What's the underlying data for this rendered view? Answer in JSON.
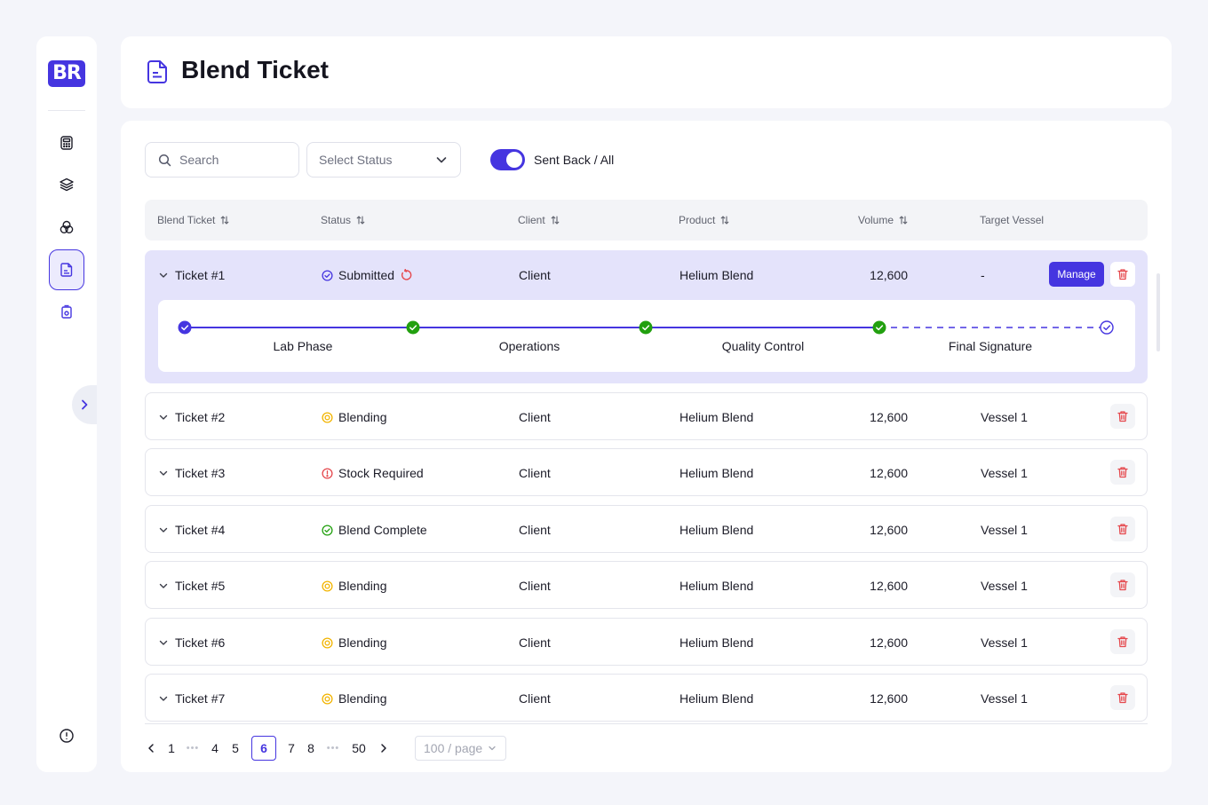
{
  "sidebar": {
    "logo": "BR",
    "items": [
      {
        "icon": "calculator-icon",
        "active": false
      },
      {
        "icon": "layers-icon",
        "active": false
      },
      {
        "icon": "blend-circles-icon",
        "active": false
      },
      {
        "icon": "document-icon",
        "active": true
      },
      {
        "icon": "cylinder-icon",
        "active": false
      }
    ],
    "footer_icon": "info-icon",
    "expand_icon": "chevron-right-icon"
  },
  "header": {
    "title": "Blend Ticket",
    "icon": "document-icon"
  },
  "toolbar": {
    "search_placeholder": "Search",
    "status_placeholder": "Select Status",
    "toggle_label": "Sent Back / All",
    "toggle_on": true
  },
  "table": {
    "columns": {
      "ticket": "Blend Ticket",
      "status": "Status",
      "client": "Client",
      "product": "Product",
      "volume": "Volume",
      "vessel": "Target Vessel"
    },
    "rows": [
      {
        "ticket": "Ticket #1",
        "status": "Submitted",
        "status_icon": "check-circle-icon",
        "client": "Client",
        "product": "Helium Blend",
        "volume": "12,600",
        "vessel": "-",
        "manage_label": "Manage"
      },
      {
        "ticket": "Ticket #2",
        "status": "Blending",
        "status_icon": "coin-icon",
        "client": "Client",
        "product": "Helium Blend",
        "volume": "12,600",
        "vessel": "Vessel 1"
      },
      {
        "ticket": "Ticket #3",
        "status": "Stock Required",
        "status_icon": "alert-icon",
        "client": "Client",
        "product": "Helium Blend",
        "volume": "12,600",
        "vessel": "Vessel 1"
      },
      {
        "ticket": "Ticket #4",
        "status": "Blend Complete",
        "status_icon": "check-circle-icon",
        "client": "Client",
        "product": "Helium Blend",
        "volume": "12,600",
        "vessel": "Vessel 1"
      },
      {
        "ticket": "Ticket #5",
        "status": "Blending",
        "status_icon": "coin-icon",
        "client": "Client",
        "product": "Helium Blend",
        "volume": "12,600",
        "vessel": "Vessel 1"
      },
      {
        "ticket": "Ticket #6",
        "status": "Blending",
        "status_icon": "coin-icon",
        "client": "Client",
        "product": "Helium Blend",
        "volume": "12,600",
        "vessel": "Vessel 1"
      },
      {
        "ticket": "Ticket #7",
        "status": "Blending",
        "status_icon": "coin-icon",
        "client": "Client",
        "product": "Helium Blend",
        "volume": "12,600",
        "vessel": "Vessel 1"
      }
    ],
    "progress_steps": [
      "Lab Phase",
      "Operations",
      "Quality Control",
      "Final Signature"
    ]
  },
  "pagination": {
    "pages": [
      "1",
      "4",
      "5",
      "6",
      "7",
      "8",
      "50"
    ],
    "current": "6",
    "per_page": "100 / page"
  },
  "colors": {
    "accent": "#4535e0",
    "success": "#22a00f",
    "warning": "#f2b400",
    "danger": "#e5484d"
  }
}
